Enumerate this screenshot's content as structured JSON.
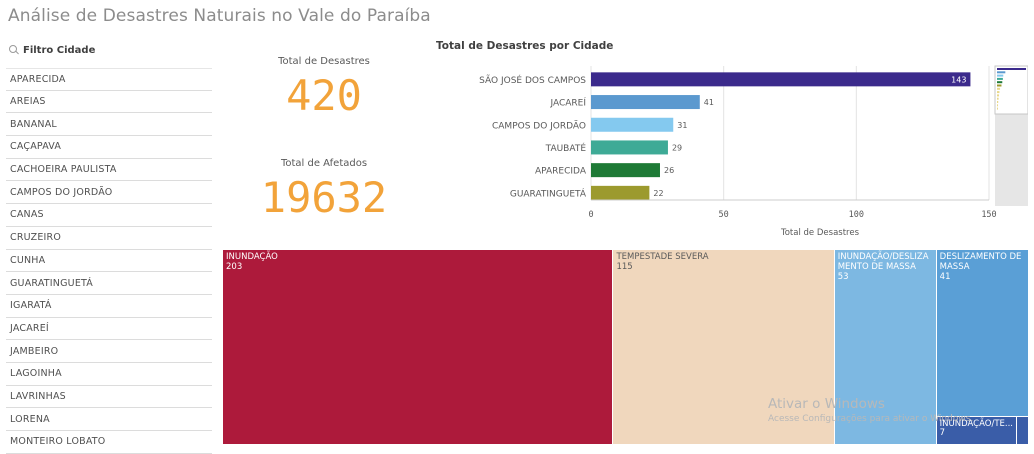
{
  "app": {
    "title": "Análise de Desastres Naturais no Vale do Paraíba"
  },
  "filter": {
    "title": "Filtro Cidade",
    "items": [
      "APARECIDA",
      "AREIAS",
      "BANANAL",
      "CAÇAPAVA",
      "CACHOEIRA PAULISTA",
      "CAMPOS DO JORDÃO",
      "CANAS",
      "CRUZEIRO",
      "CUNHA",
      "GUARATINGUETÁ",
      "IGARATÁ",
      "JACAREÍ",
      "JAMBEIRO",
      "LAGOINHA",
      "LAVRINHAS",
      "LORENA",
      "MONTEIRO LOBATO"
    ]
  },
  "kpis": {
    "total_desastres": {
      "label": "Total de Desastres",
      "value": "420"
    },
    "total_afetados": {
      "label": "Total de Afetados",
      "value": "19632"
    }
  },
  "chart_data": [
    {
      "type": "bar",
      "orientation": "horizontal",
      "title": "Total de Desastres por Cidade",
      "xlabel": "Total de Desastres",
      "ylabel": "",
      "xlim": [
        0,
        150
      ],
      "xticks": [
        "0",
        "50",
        "100",
        "150"
      ],
      "grid": true,
      "categories": [
        "SÃO JOSÉ DOS CAMPOS",
        "JACAREÍ",
        "CAMPOS DO JORDÃO",
        "TAUBATÉ",
        "APARECIDA",
        "GUARATINGUETÁ"
      ],
      "values": [
        143,
        41,
        31,
        29,
        26,
        22
      ],
      "colors": [
        "#3b2a8c",
        "#5b99cf",
        "#84c9ef",
        "#3eaa96",
        "#1e7a36",
        "#9c9a2e"
      ],
      "partial_next_bar": {
        "value": 15,
        "color": "#e8d88a"
      }
    },
    {
      "type": "treemap",
      "title": "",
      "items": [
        {
          "label": "INUNDAÇÃO",
          "value": 203,
          "color": "#ad1a3b"
        },
        {
          "label": "TEMPESTADE SEVERA",
          "value": 115,
          "color": "#f0d7bd"
        },
        {
          "label": "INUNDAÇÃO/DESLIZAMENTO DE MASSA",
          "value": 53,
          "color": "#7db8e2"
        },
        {
          "label": "DESLIZAMENTO DE MASSA",
          "value": 41,
          "color": "#5a9fd6"
        },
        {
          "label": "INUNDAÇÃO/TE...",
          "value": 7,
          "color": "#3a5da8"
        }
      ]
    }
  ],
  "watermark": {
    "line1": "Ativar o Windows",
    "line2": "Acesse Configurações para ativar o Windows."
  }
}
